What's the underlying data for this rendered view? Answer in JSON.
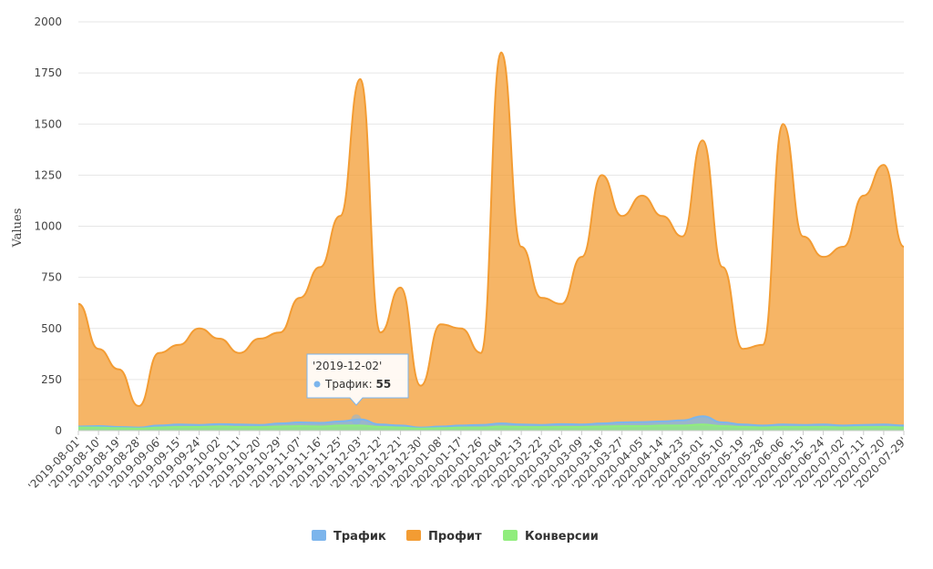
{
  "chart_data": {
    "type": "area",
    "ylabel": "Values",
    "ylim": [
      0,
      2000
    ],
    "yticks": [
      "0",
      "250",
      "500",
      "750",
      "1000",
      "1250",
      "1500",
      "1750",
      "2000"
    ],
    "xlabels": [
      "'2019-08-01'",
      "'2019-08-10'",
      "'2019-08-19'",
      "'2019-08-28'",
      "'2019-09-06'",
      "'2019-09-15'",
      "'2019-09-24'",
      "'2019-10-02'",
      "'2019-10-11'",
      "'2019-10-20'",
      "'2019-10-29'",
      "'2019-11-07'",
      "'2019-11-16'",
      "'2019-11-25'",
      "'2019-12-03'",
      "'2019-12-12'",
      "'2019-12-21'",
      "'2019-12-30'",
      "'2020-01-08'",
      "'2020-01-17'",
      "'2020-01-26'",
      "'2020-02-04'",
      "'2020-02-13'",
      "'2020-02-22'",
      "'2020-03-02'",
      "'2020-03-09'",
      "'2020-03-18'",
      "'2020-03-27'",
      "'2020-04-05'",
      "'2020-04-14'",
      "'2020-04-23'",
      "'2020-05-01'",
      "'2020-05-10'",
      "'2020-05-19'",
      "'2020-05-28'",
      "'2020-06-06'",
      "'2020-06-15'",
      "'2020-06-24'",
      "'2020-07-02'",
      "'2020-07-11'",
      "'2020-07-20'",
      "'2020-07-29'"
    ],
    "x": [
      "2019-08-01",
      "2019-08-10",
      "2019-08-19",
      "2019-08-28",
      "2019-09-06",
      "2019-09-15",
      "2019-09-24",
      "2019-10-02",
      "2019-10-11",
      "2019-10-20",
      "2019-10-29",
      "2019-11-07",
      "2019-11-16",
      "2019-11-25",
      "2019-12-03",
      "2019-12-12",
      "2019-12-21",
      "2019-12-30",
      "2020-01-08",
      "2020-01-17",
      "2020-01-26",
      "2020-02-04",
      "2020-02-13",
      "2020-02-22",
      "2020-03-02",
      "2020-03-09",
      "2020-03-18",
      "2020-03-27",
      "2020-04-05",
      "2020-04-14",
      "2020-04-23",
      "2020-05-01",
      "2020-05-10",
      "2020-05-19",
      "2020-05-28",
      "2020-06-06",
      "2020-06-15",
      "2020-06-24",
      "2020-07-02",
      "2020-07-11",
      "2020-07-20",
      "2020-07-29"
    ],
    "series": [
      {
        "name": "Трафик",
        "color": "#7cb5ec",
        "values": [
          20,
          22,
          18,
          15,
          25,
          30,
          28,
          32,
          30,
          28,
          35,
          40,
          38,
          45,
          55,
          30,
          25,
          15,
          20,
          25,
          28,
          35,
          30,
          28,
          32,
          30,
          35,
          40,
          42,
          45,
          50,
          70,
          40,
          30,
          25,
          30,
          28,
          30,
          25,
          28,
          30,
          25
        ]
      },
      {
        "name": "Профит",
        "color": "#f39c33",
        "values": [
          620,
          400,
          300,
          120,
          380,
          420,
          500,
          450,
          380,
          450,
          480,
          650,
          800,
          1050,
          1720,
          480,
          700,
          220,
          520,
          500,
          380,
          1850,
          900,
          650,
          620,
          850,
          1250,
          1050,
          1150,
          1050,
          950,
          1420,
          800,
          400,
          420,
          1500,
          950,
          850,
          900,
          1150,
          1300,
          900
        ]
      },
      {
        "name": "Конверсии",
        "color": "#90ed7d",
        "values": [
          15,
          15,
          12,
          10,
          15,
          18,
          18,
          20,
          18,
          17,
          20,
          22,
          20,
          25,
          25,
          18,
          15,
          10,
          12,
          15,
          15,
          20,
          18,
          17,
          18,
          18,
          20,
          22,
          22,
          25,
          25,
          30,
          22,
          18,
          15,
          18,
          17,
          18,
          15,
          17,
          18,
          15
        ]
      }
    ],
    "tooltip": {
      "date": "'2019-12-02'",
      "series": "Трафик",
      "value": "55"
    },
    "legend_position": "bottom"
  }
}
